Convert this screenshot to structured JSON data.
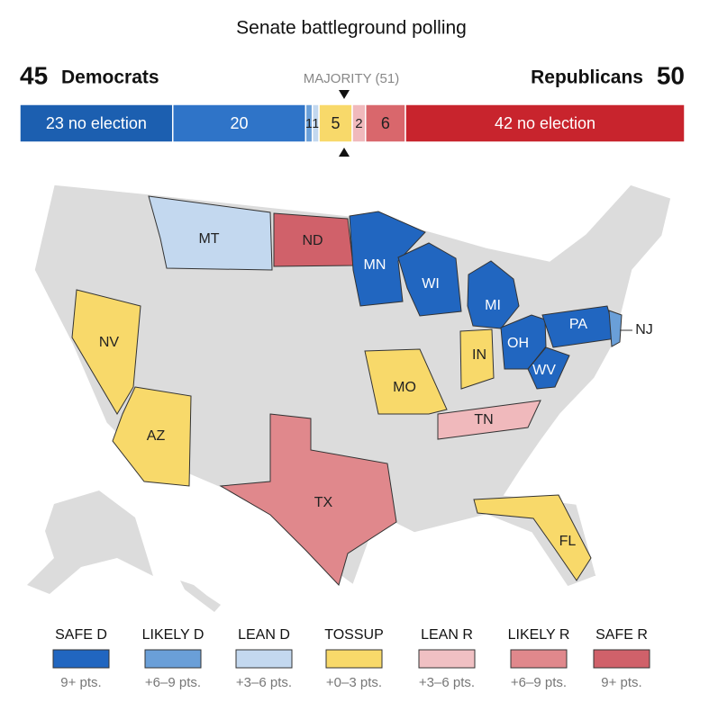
{
  "header": {
    "title": "Senate battleground polling",
    "dem_count": 45,
    "dem_label": "Democrats",
    "rep_label": "Republicans",
    "rep_count": 50,
    "majority": "MAJORITY (51)"
  },
  "seat_bar": {
    "total": 100,
    "segments": [
      {
        "seats": 23,
        "label": "23 no election",
        "color": "#1c5fb0"
      },
      {
        "seats": 20,
        "color": "#2f74c8"
      },
      {
        "seats": 1,
        "color": "#6a9fd8"
      },
      {
        "seats": 1,
        "color": "#c3d8ef"
      },
      {
        "seats": 5,
        "color": "#f8d96a"
      },
      {
        "seats": 2,
        "color": "#f0b9bc"
      },
      {
        "seats": 6,
        "color": "#d9676c"
      },
      {
        "seats": 42,
        "label": "42 no election",
        "color": "#c8242d"
      }
    ]
  },
  "map": {
    "states": [
      {
        "label": "MT"
      },
      {
        "label": "ND"
      },
      {
        "label": "MN"
      },
      {
        "label": "WI"
      },
      {
        "label": "MI"
      },
      {
        "label": "OH"
      },
      {
        "label": "PA"
      },
      {
        "label": "WV"
      },
      {
        "label": "NJ"
      },
      {
        "label": "IN"
      },
      {
        "label": "NV"
      },
      {
        "label": "AZ"
      },
      {
        "label": "MO"
      },
      {
        "label": "TN"
      },
      {
        "label": "TX"
      },
      {
        "label": "FL"
      }
    ]
  },
  "legend": [
    {
      "name": "SAFE D",
      "range": "9+ pts.",
      "color": "#2166c0"
    },
    {
      "name": "LIKELY D",
      "range": "+6–9 pts.",
      "color": "#6a9fd8"
    },
    {
      "name": "LEAN D",
      "range": "+3–6 pts.",
      "color": "#c3d8ef"
    },
    {
      "name": "TOSSUP",
      "range": "+0–3 pts.",
      "color": "#f8d96a"
    },
    {
      "name": "LEAN R",
      "range": "+3–6 pts.",
      "color": "#f0c0c3"
    },
    {
      "name": "LIKELY R",
      "range": "+6–9 pts.",
      "color": "#e0888c"
    },
    {
      "name": "SAFE R",
      "range": "9+ pts.",
      "color": "#d0616a"
    }
  ]
}
